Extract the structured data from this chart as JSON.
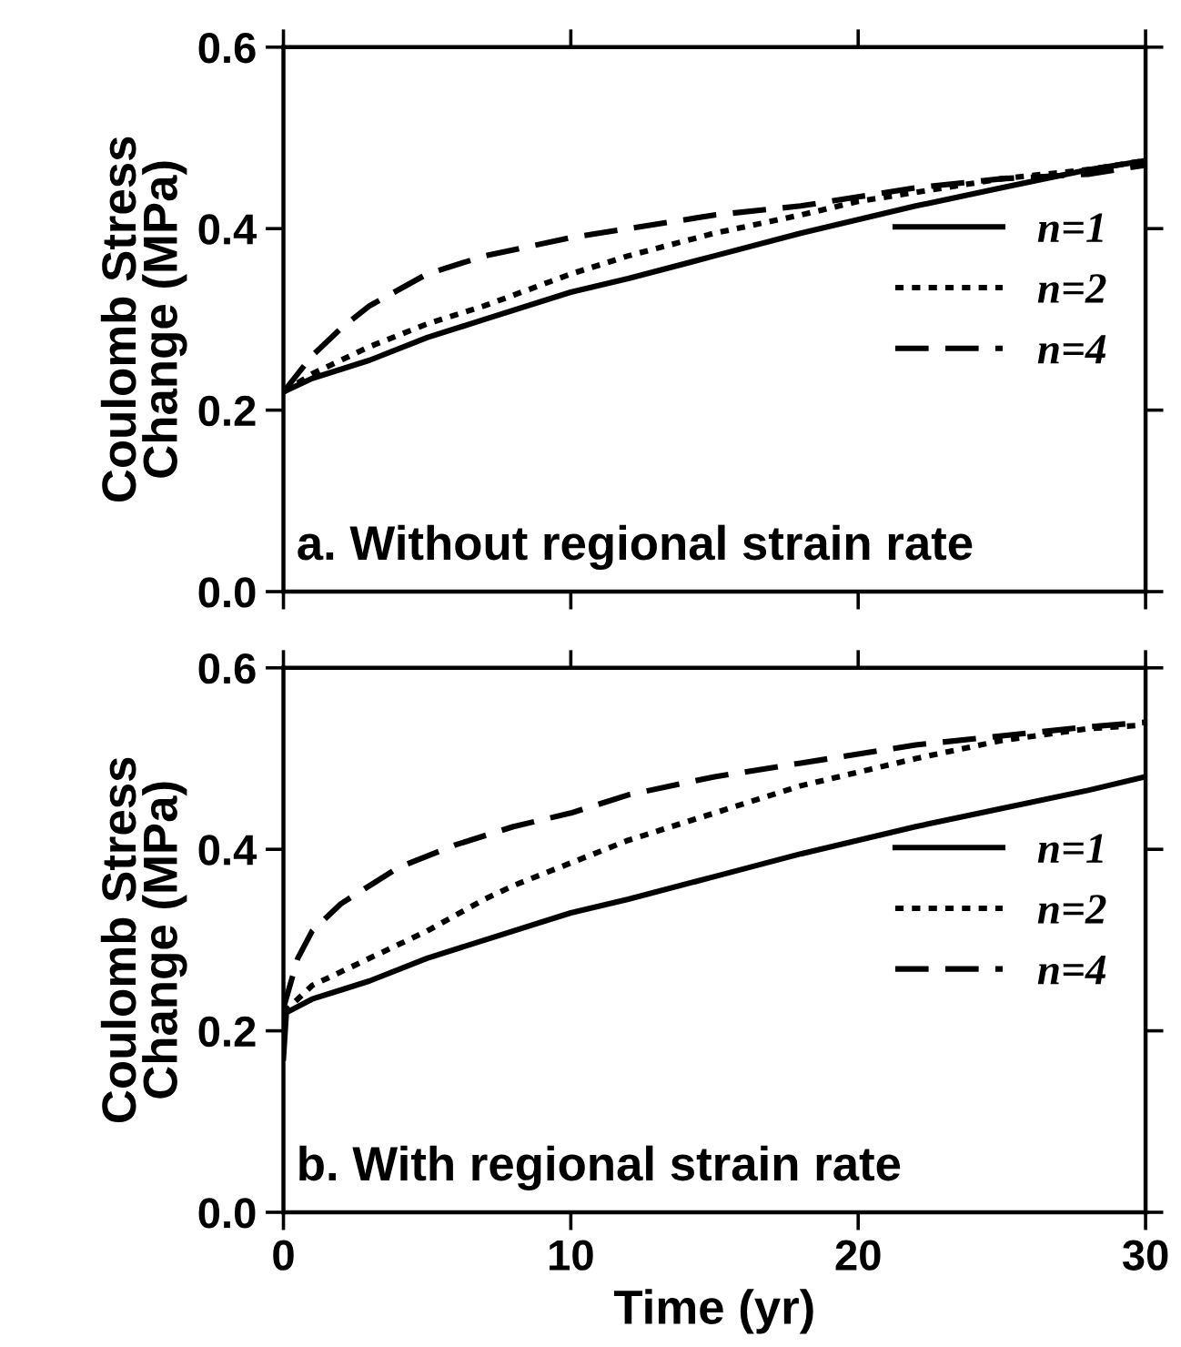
{
  "chart_data": [
    {
      "type": "line",
      "ylabel": "Coulomb Stress\nChange (MPa)",
      "annotations": [
        "a. Without regional strain rate"
      ],
      "xlim": [
        0,
        30
      ],
      "xticks": [
        0,
        10,
        20,
        30
      ],
      "ylim": [
        0,
        0.6
      ],
      "yticks": [
        {
          "value": 0,
          "label": "0.0"
        },
        {
          "value": 0.2,
          "label": "0.2"
        },
        {
          "value": 0.4,
          "label": "0.4"
        },
        {
          "value": 0.6,
          "label": "0.6"
        }
      ],
      "tick_labels": "y",
      "legend": "right",
      "grid": false,
      "series": [
        {
          "name": "n=1",
          "color": "#000000",
          "line_style": "solid",
          "x": [
            0,
            1,
            2,
            3,
            5,
            7,
            10,
            12,
            15,
            18,
            20,
            22,
            25,
            28,
            30
          ],
          "values": [
            0.22,
            0.235,
            0.245,
            0.255,
            0.28,
            0.3,
            0.33,
            0.345,
            0.37,
            0.395,
            0.41,
            0.425,
            0.445,
            0.465,
            0.475
          ]
        },
        {
          "name": "n=2",
          "color": "#000000",
          "line_style": "dotted",
          "x": [
            0,
            1,
            2,
            3,
            5,
            7,
            10,
            12,
            15,
            18,
            20,
            22,
            25,
            28,
            30
          ],
          "values": [
            0.22,
            0.24,
            0.255,
            0.27,
            0.295,
            0.315,
            0.35,
            0.37,
            0.395,
            0.415,
            0.43,
            0.44,
            0.455,
            0.465,
            0.475
          ]
        },
        {
          "name": "n=4",
          "color": "#000000",
          "line_style": "dashed",
          "x": [
            0,
            1,
            2,
            3,
            5,
            7,
            10,
            12,
            15,
            18,
            20,
            22,
            25,
            28,
            30
          ],
          "values": [
            0.22,
            0.26,
            0.29,
            0.315,
            0.35,
            0.37,
            0.39,
            0.4,
            0.415,
            0.425,
            0.435,
            0.445,
            0.455,
            0.46,
            0.47
          ]
        }
      ]
    },
    {
      "type": "line",
      "ylabel": "Coulomb Stress\nChange (MPa)",
      "xlabel": "Time (yr)",
      "annotations": [
        "b. With regional strain rate"
      ],
      "xlim": [
        0,
        30
      ],
      "xticks": [
        0,
        10,
        20,
        30
      ],
      "ylim": [
        0,
        0.6
      ],
      "yticks": [
        {
          "value": 0,
          "label": "0.0"
        },
        {
          "value": 0.2,
          "label": "0.2"
        },
        {
          "value": 0.4,
          "label": "0.4"
        },
        {
          "value": 0.6,
          "label": "0.6"
        }
      ],
      "legend": "right",
      "grid": false,
      "series": [
        {
          "name": "n=1",
          "color": "#000000",
          "line_style": "solid",
          "x": [
            0,
            0.1,
            1,
            2,
            3,
            5,
            7,
            10,
            12,
            15,
            18,
            20,
            22,
            25,
            28,
            30
          ],
          "values": [
            0.17,
            0.22,
            0.235,
            0.245,
            0.255,
            0.28,
            0.3,
            0.33,
            0.345,
            0.37,
            0.395,
            0.41,
            0.425,
            0.445,
            0.465,
            0.48
          ]
        },
        {
          "name": "n=2",
          "color": "#000000",
          "line_style": "dotted",
          "x": [
            0,
            1,
            2,
            3,
            5,
            7,
            8,
            10,
            12,
            15,
            18,
            20,
            22,
            25,
            28,
            30
          ],
          "values": [
            0.22,
            0.25,
            0.265,
            0.28,
            0.31,
            0.345,
            0.36,
            0.385,
            0.41,
            0.44,
            0.47,
            0.485,
            0.5,
            0.52,
            0.533,
            0.537
          ]
        },
        {
          "name": "n=4",
          "color": "#000000",
          "line_style": "dashed",
          "x": [
            0,
            0.5,
            1,
            2,
            3,
            4,
            6,
            8,
            10,
            12,
            15,
            18,
            20,
            22,
            25,
            28,
            30
          ],
          "values": [
            0.225,
            0.28,
            0.31,
            0.34,
            0.36,
            0.38,
            0.405,
            0.425,
            0.44,
            0.46,
            0.48,
            0.495,
            0.505,
            0.515,
            0.525,
            0.535,
            0.54
          ]
        }
      ]
    }
  ]
}
